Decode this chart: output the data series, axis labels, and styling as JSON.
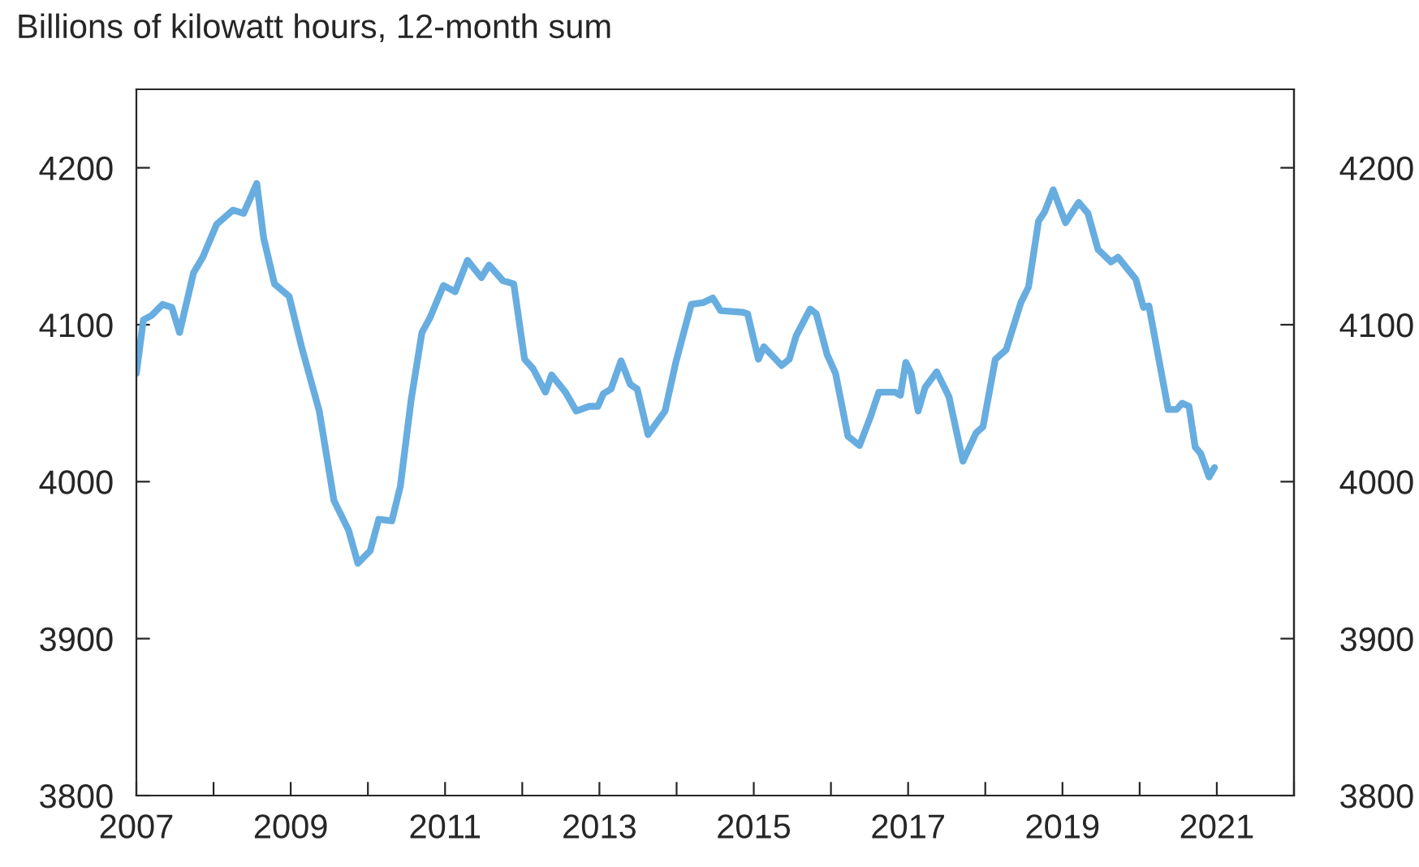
{
  "chart_data": {
    "type": "line",
    "title": "Billions of kilowatt hours, 12-month sum",
    "x": [
      2007.0,
      2007.09,
      2007.2,
      2007.34,
      2007.46,
      2007.56,
      2007.74,
      2007.86,
      2008.04,
      2008.25,
      2008.39,
      2008.56,
      2008.65,
      2008.79,
      2008.98,
      2009.14,
      2009.37,
      2009.56,
      2009.75,
      2009.87,
      2010.03,
      2010.14,
      2010.31,
      2010.42,
      2010.56,
      2010.7,
      2010.8,
      2010.98,
      2011.13,
      2011.29,
      2011.47,
      2011.57,
      2011.75,
      2011.89,
      2012.03,
      2012.14,
      2012.3,
      2012.38,
      2012.56,
      2012.7,
      2012.87,
      2012.98,
      2013.05,
      2013.15,
      2013.28,
      2013.4,
      2013.49,
      2013.63,
      2013.85,
      2013.99,
      2014.19,
      2014.34,
      2014.47,
      2014.57,
      2014.85,
      2014.92,
      2015.06,
      2015.13,
      2015.36,
      2015.46,
      2015.55,
      2015.73,
      2015.81,
      2015.95,
      2016.06,
      2016.22,
      2016.37,
      2016.51,
      2016.62,
      2016.83,
      2016.9,
      2016.97,
      2017.04,
      2017.13,
      2017.22,
      2017.37,
      2017.53,
      2017.71,
      2017.88,
      2017.97,
      2018.13,
      2018.27,
      2018.46,
      2018.56,
      2018.69,
      2018.77,
      2018.88,
      2019.04,
      2019.21,
      2019.33,
      2019.46,
      2019.63,
      2019.72,
      2019.95,
      2020.05,
      2020.12,
      2020.37,
      2020.48,
      2020.55,
      2020.64,
      2020.72,
      2020.79,
      2020.9,
      2020.97
    ],
    "series": [
      {
        "color": "#67ade0",
        "values": [
          4069,
          4103,
          4106,
          4113,
          4111,
          4095,
          4133,
          4143,
          4164,
          4173,
          4171,
          4190,
          4155,
          4126,
          4118,
          4086,
          4045,
          3988,
          3969,
          3948,
          3956,
          3976,
          3975,
          3997,
          4052,
          4095,
          4104,
          4125,
          4121,
          4141,
          4130,
          4138,
          4128,
          4126,
          4078,
          4072,
          4057,
          4068,
          4057,
          4045,
          4048,
          4048,
          4056,
          4059,
          4077,
          4062,
          4059,
          4030,
          4045,
          4076,
          4113,
          4114,
          4117,
          4109,
          4108,
          4107,
          4078,
          4086,
          4074,
          4078,
          4093,
          4110,
          4107,
          4081,
          4069,
          4029,
          4023,
          4041,
          4057,
          4057,
          4055,
          4076,
          4069,
          4045,
          4060,
          4070,
          4054,
          4013,
          4031,
          4035,
          4078,
          4084,
          4114,
          4124,
          4166,
          4172,
          4186,
          4165,
          4178,
          4171,
          4148,
          4140,
          4143,
          4129,
          4111,
          4112,
          4046,
          4046,
          4050,
          4048,
          4022,
          4018,
          4003,
          4009
        ]
      }
    ],
    "xlim": [
      2007,
      2022
    ],
    "xticks": [
      2007,
      {
        "value": 2008,
        "label": null
      },
      2009,
      {
        "value": 2010,
        "label": null
      },
      2011,
      {
        "value": 2012,
        "label": null
      },
      2013,
      {
        "value": 2014,
        "label": null
      },
      2015,
      {
        "value": 2016,
        "label": null
      },
      2017,
      {
        "value": 2018,
        "label": null
      },
      2019,
      {
        "value": 2020,
        "label": null
      },
      2021,
      {
        "value": 2022,
        "label": null
      }
    ],
    "ylim": [
      3800,
      4250
    ],
    "yticks": [
      3800,
      3900,
      4000,
      4100,
      4200
    ],
    "y2lim": [
      3800,
      4250
    ],
    "y2ticks": [
      3800,
      3900,
      4000,
      4100,
      4200
    ],
    "grid": false,
    "legend": false,
    "marker": "none",
    "line_style": "solid"
  }
}
